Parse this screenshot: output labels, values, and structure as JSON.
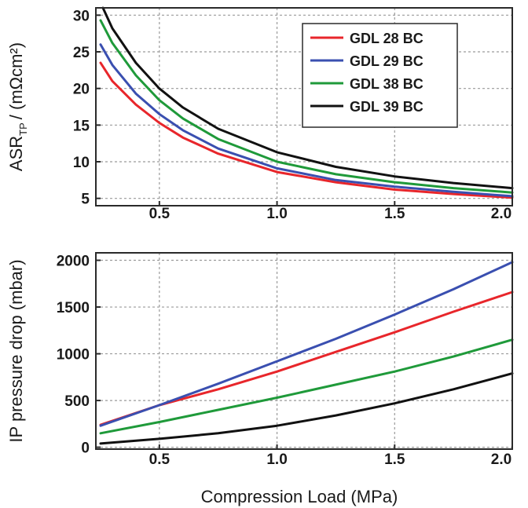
{
  "chart_data": [
    {
      "type": "line",
      "title": "",
      "xlabel": "",
      "ylabel": "/ (mΩcm²)",
      "ylabel_main": "ASR",
      "ylabel_sub": "TP",
      "xlim": [
        0.23,
        2.0
      ],
      "ylim": [
        4,
        31
      ],
      "xticks": [
        "0.5",
        "1.0",
        "1.5",
        "2.0"
      ],
      "yticks": [
        "5",
        "10",
        "15",
        "20",
        "25",
        "30"
      ],
      "grid": true,
      "legend_position": "top-right",
      "series": [
        {
          "name": "GDL 28 BC",
          "color": "#e8262b",
          "x": [
            0.25,
            0.3,
            0.4,
            0.5,
            0.6,
            0.75,
            1.0,
            1.25,
            1.5,
            1.75,
            2.0
          ],
          "y": [
            23.5,
            21.0,
            17.8,
            15.3,
            13.3,
            11.1,
            8.6,
            7.2,
            6.2,
            5.6,
            5.1
          ]
        },
        {
          "name": "GDL 29 BC",
          "color": "#3a4fb0",
          "x": [
            0.25,
            0.3,
            0.4,
            0.5,
            0.6,
            0.75,
            1.0,
            1.25,
            1.5,
            1.75,
            2.0
          ],
          "y": [
            26.0,
            23.2,
            19.3,
            16.5,
            14.3,
            11.8,
            9.1,
            7.5,
            6.6,
            5.9,
            5.3
          ]
        },
        {
          "name": "GDL 38 BC",
          "color": "#1f9a3a",
          "x": [
            0.25,
            0.3,
            0.4,
            0.5,
            0.6,
            0.75,
            1.0,
            1.25,
            1.5,
            1.75,
            2.0
          ],
          "y": [
            29.3,
            26.2,
            21.8,
            18.4,
            15.9,
            13.1,
            10.0,
            8.3,
            7.2,
            6.4,
            5.8
          ]
        },
        {
          "name": "GDL 39 BC",
          "color": "#111111",
          "x": [
            0.26,
            0.3,
            0.4,
            0.5,
            0.6,
            0.75,
            1.0,
            1.25,
            1.5,
            1.75,
            2.0
          ],
          "y": [
            31.0,
            28.2,
            23.5,
            20.0,
            17.4,
            14.5,
            11.3,
            9.3,
            8.0,
            7.1,
            6.4
          ]
        }
      ]
    },
    {
      "type": "line",
      "title": "",
      "xlabel": "Compression Load (MPa)",
      "ylabel": "IP pressure drop (mbar)",
      "xlim": [
        0.23,
        2.0
      ],
      "ylim": [
        -20,
        2080
      ],
      "xticks": [
        "0.5",
        "1.0",
        "1.5",
        "2.0"
      ],
      "yticks": [
        "0",
        "500",
        "1000",
        "1500",
        "2000"
      ],
      "grid": true,
      "series": [
        {
          "color": "#e8262b",
          "x": [
            0.25,
            0.5,
            0.75,
            1.0,
            1.25,
            1.5,
            1.75,
            2.0
          ],
          "y": [
            240,
            450,
            620,
            810,
            1020,
            1230,
            1450,
            1660
          ]
        },
        {
          "color": "#3a4fb0",
          "x": [
            0.25,
            0.5,
            0.75,
            1.0,
            1.25,
            1.5,
            1.75,
            2.0
          ],
          "y": [
            230,
            450,
            680,
            920,
            1160,
            1420,
            1690,
            1980
          ]
        },
        {
          "color": "#1f9a3a",
          "x": [
            0.25,
            0.5,
            0.75,
            1.0,
            1.25,
            1.5,
            1.75,
            2.0
          ],
          "y": [
            150,
            270,
            400,
            530,
            670,
            810,
            970,
            1150
          ]
        },
        {
          "color": "#111111",
          "x": [
            0.25,
            0.5,
            0.75,
            1.0,
            1.25,
            1.5,
            1.75,
            2.0
          ],
          "y": [
            40,
            90,
            150,
            230,
            340,
            470,
            620,
            790
          ]
        }
      ]
    }
  ]
}
